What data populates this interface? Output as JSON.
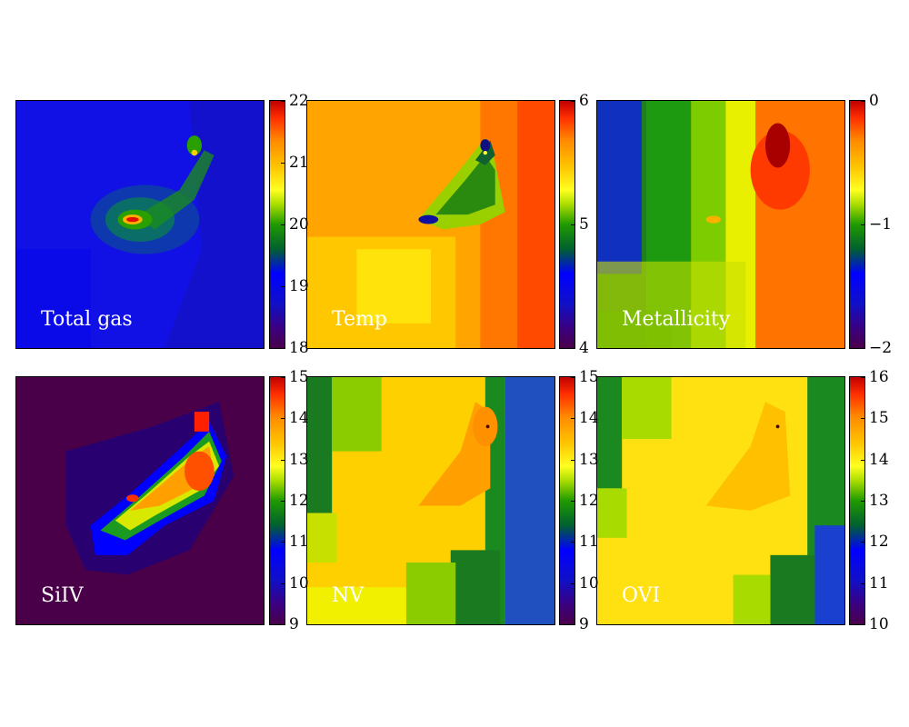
{
  "chart_data": [
    {
      "type": "heatmap",
      "label": "Total gas",
      "colorbar_ticks": [
        "18",
        "19",
        "20",
        "21",
        "22"
      ],
      "clim": [
        18,
        22
      ],
      "colormap": "spectral"
    },
    {
      "type": "heatmap",
      "label": "Temp",
      "colorbar_ticks": [
        "4",
        "5",
        "6"
      ],
      "clim": [
        4,
        6
      ],
      "colormap": "spectral"
    },
    {
      "type": "heatmap",
      "label": "Metallicity",
      "colorbar_ticks": [
        "−2",
        "−1",
        "0"
      ],
      "clim": [
        -2,
        0
      ],
      "colormap": "spectral"
    },
    {
      "type": "heatmap",
      "label": "SiIV",
      "colorbar_ticks": [
        "9",
        "10",
        "11",
        "12",
        "13",
        "14",
        "15"
      ],
      "clim": [
        9,
        15
      ],
      "colormap": "spectral"
    },
    {
      "type": "heatmap",
      "label": "NV",
      "colorbar_ticks": [
        "9",
        "10",
        "11",
        "12",
        "13",
        "14",
        "15"
      ],
      "clim": [
        9,
        15
      ],
      "colormap": "spectral"
    },
    {
      "type": "heatmap",
      "label": "OVI",
      "colorbar_ticks": [
        "10",
        "11",
        "12",
        "13",
        "14",
        "15",
        "16"
      ],
      "clim": [
        10,
        16
      ],
      "colormap": "spectral"
    }
  ]
}
